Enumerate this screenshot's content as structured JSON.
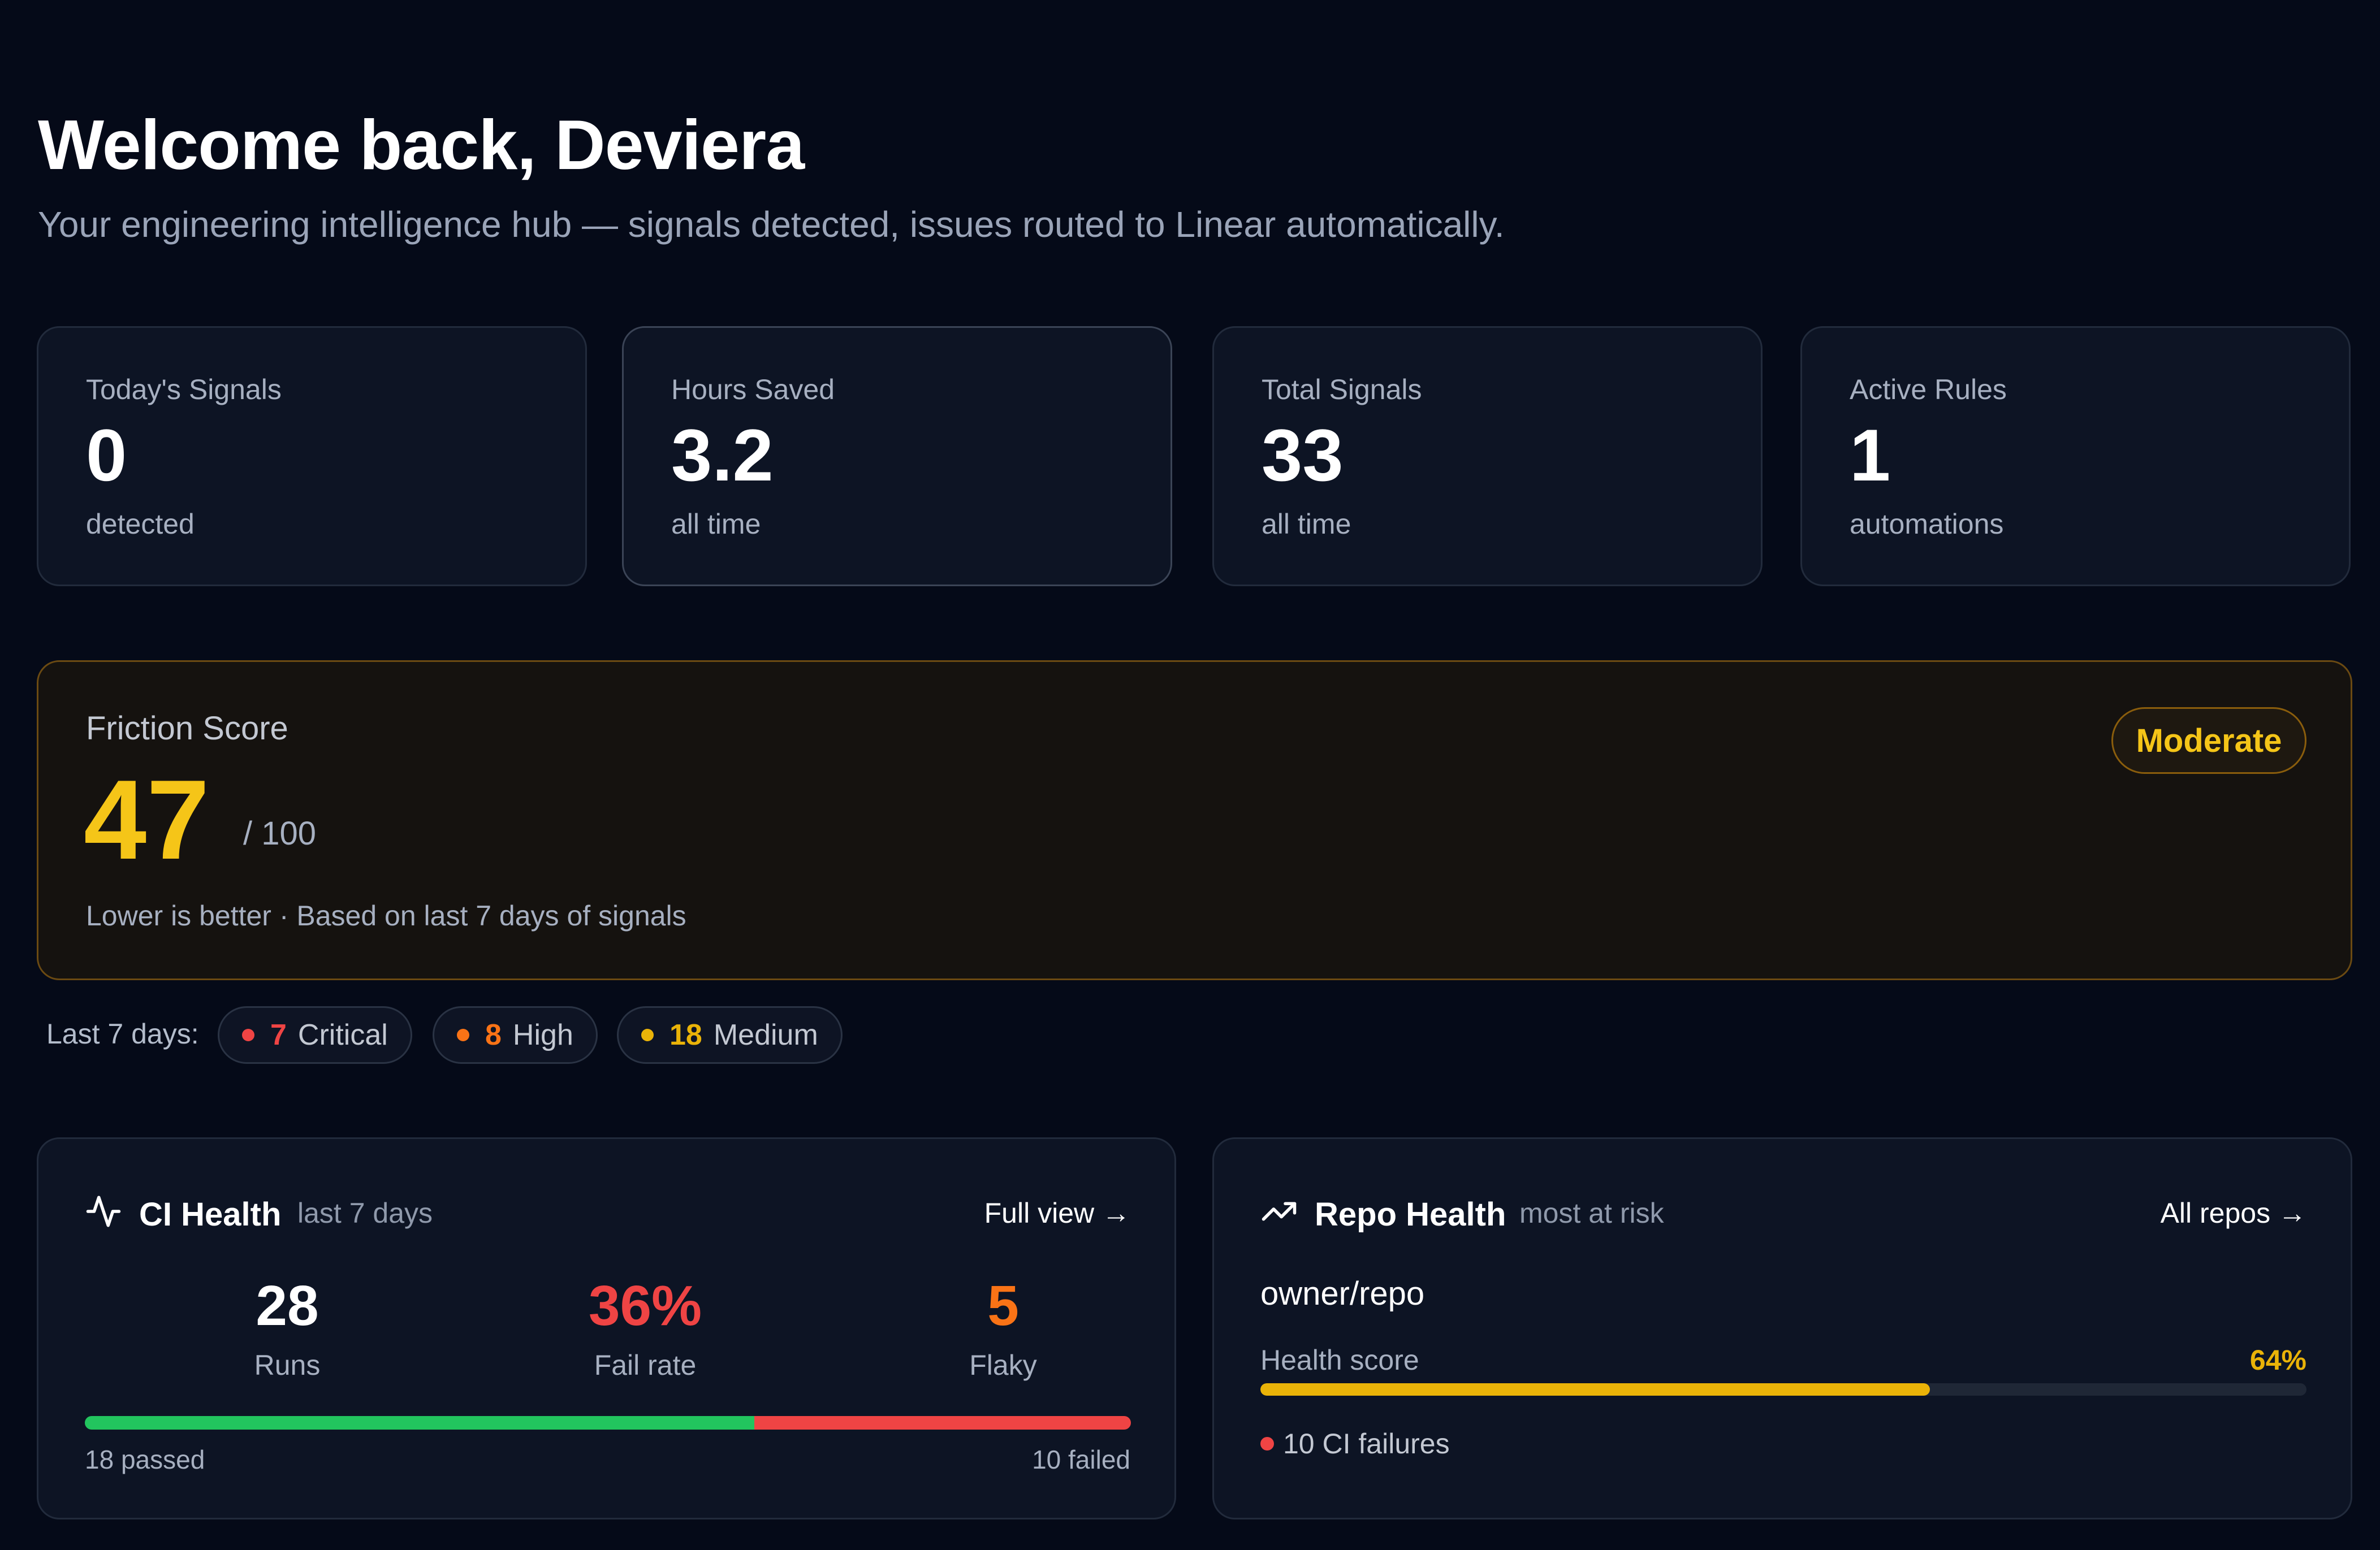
{
  "header": {
    "title": "Welcome back, Deviera",
    "subtitle": "Your engineering intelligence hub — signals detected, issues routed to Linear automatically."
  },
  "stats": [
    {
      "label": "Today's Signals",
      "value": "0",
      "sub": "detected"
    },
    {
      "label": "Hours Saved",
      "value": "3.2",
      "sub": "all time"
    },
    {
      "label": "Total Signals",
      "value": "33",
      "sub": "all time"
    },
    {
      "label": "Active Rules",
      "value": "1",
      "sub": "automations"
    }
  ],
  "friction": {
    "label": "Friction Score",
    "value": "47",
    "max": "/ 100",
    "note": "Lower is better · Based on last 7 days of signals",
    "badge": "Moderate",
    "color": "#f5c518"
  },
  "severity": {
    "label": "Last 7 days:",
    "chips": [
      {
        "count": "7",
        "label": "Critical",
        "color": "#ef4444"
      },
      {
        "count": "8",
        "label": "High",
        "color": "#f97316"
      },
      {
        "count": "18",
        "label": "Medium",
        "color": "#eab308"
      }
    ]
  },
  "ci_health": {
    "icon": "activity-icon",
    "title": "CI Health",
    "subtitle": "last 7 days",
    "link": "Full view →",
    "metrics": [
      {
        "value": "28",
        "label": "Runs",
        "color": "#ffffff"
      },
      {
        "value": "36%",
        "label": "Fail rate",
        "color": "#ef4444"
      },
      {
        "value": "5",
        "label": "Flaky",
        "color": "#f97316"
      }
    ],
    "passed_fraction": 0.64,
    "passed_label": "18 passed",
    "failed_label": "10 failed"
  },
  "repo_health": {
    "icon": "trending-up-icon",
    "title": "Repo Health",
    "subtitle": "most at risk",
    "link": "All repos →",
    "repo": "owner/repo",
    "score_label": "Health score",
    "score": "64%",
    "score_fraction": 0.64,
    "failures": "10 CI failures"
  }
}
